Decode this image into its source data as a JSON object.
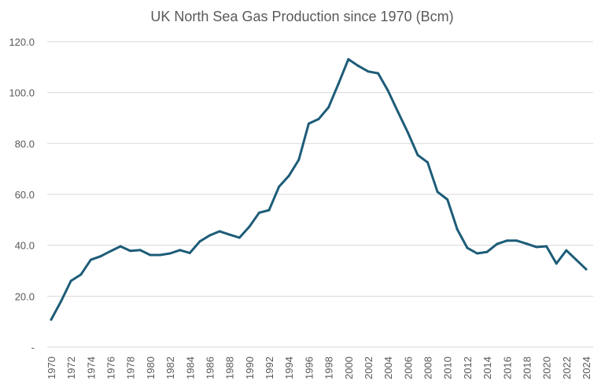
{
  "colors": {
    "line": "#1d5c78",
    "grid": "#d9d9d9",
    "text": "#595959"
  },
  "chart_data": {
    "type": "line",
    "title": "UK North Sea Gas Production since 1970 (Bcm)",
    "xlabel": "",
    "ylabel": "",
    "ylim": [
      0,
      120
    ],
    "grid": true,
    "legend": "none",
    "y_ticks": [
      {
        "value": 0,
        "label": "-"
      },
      {
        "value": 20,
        "label": "20.0"
      },
      {
        "value": 40,
        "label": "40.0"
      },
      {
        "value": 60,
        "label": "60.0"
      },
      {
        "value": 80,
        "label": "80.0"
      },
      {
        "value": 100,
        "label": "100.0"
      },
      {
        "value": 120,
        "label": "120.0"
      }
    ],
    "x_tick_labels": [
      "1970",
      "1972",
      "1974",
      "1976",
      "1978",
      "1980",
      "1982",
      "1984",
      "1986",
      "1988",
      "1990",
      "1992",
      "1994",
      "1996",
      "1998",
      "2000",
      "2002",
      "2004",
      "2006",
      "2008",
      "2010",
      "2012",
      "2014",
      "2016",
      "2018",
      "2020",
      "2022",
      "2024"
    ],
    "x": [
      1970,
      1971,
      1972,
      1973,
      1974,
      1975,
      1976,
      1977,
      1978,
      1979,
      1980,
      1981,
      1982,
      1983,
      1984,
      1985,
      1986,
      1987,
      1988,
      1989,
      1990,
      1991,
      1992,
      1993,
      1994,
      1995,
      1996,
      1997,
      1998,
      1999,
      2000,
      2001,
      2002,
      2003,
      2004,
      2005,
      2006,
      2007,
      2008,
      2009,
      2010,
      2011,
      2012,
      2013,
      2014,
      2015,
      2016,
      2017,
      2018,
      2019,
      2020,
      2021,
      2022,
      2023,
      2024
    ],
    "series": [
      {
        "name": "Gas Production (Bcm)",
        "values": [
          10.8,
          18.0,
          26.0,
          28.5,
          34.3,
          35.7,
          37.7,
          39.6,
          37.8,
          38.1,
          36.2,
          36.2,
          36.8,
          38.1,
          37.0,
          41.5,
          43.9,
          45.5,
          44.2,
          43.0,
          47.3,
          52.8,
          53.8,
          63.0,
          67.3,
          73.6,
          87.8,
          89.6,
          94.2,
          103.5,
          113.1,
          110.5,
          108.3,
          107.6,
          100.8,
          92.5,
          84.4,
          75.5,
          72.6,
          61.0,
          58.0,
          46.2,
          39.0,
          36.8,
          37.4,
          40.5,
          41.8,
          41.8,
          40.6,
          39.3,
          39.6,
          32.8,
          38.0,
          34.3,
          30.6
        ]
      }
    ]
  }
}
